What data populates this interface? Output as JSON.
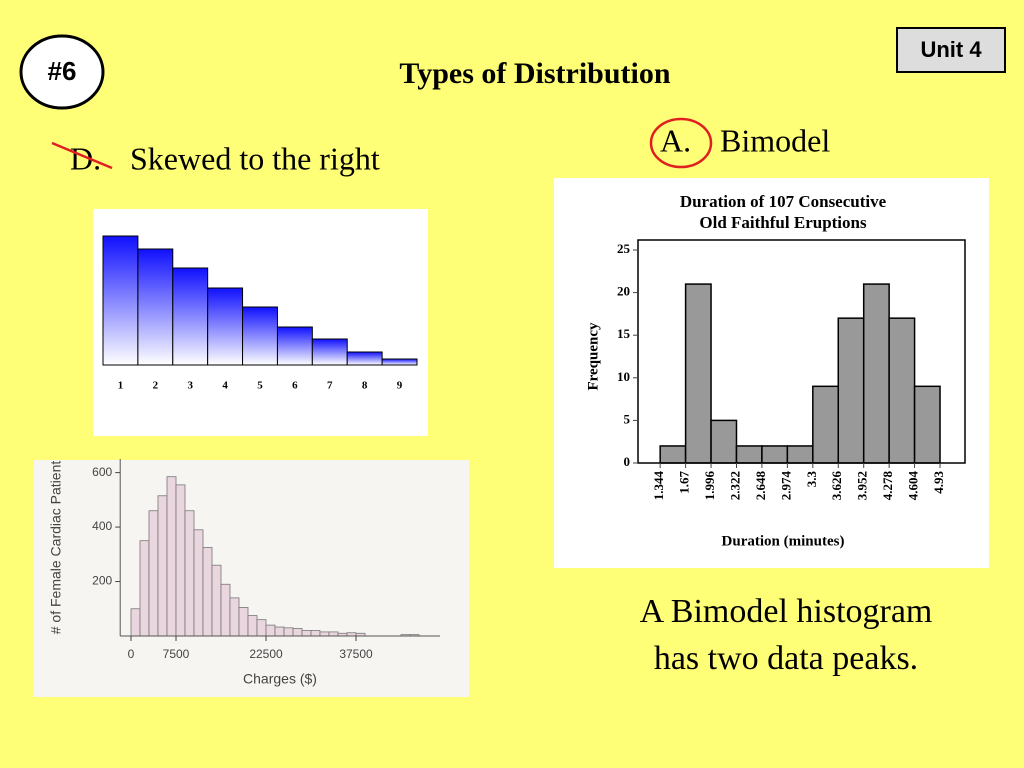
{
  "slide": {
    "badge": "#6",
    "unit": "Unit 4",
    "title": "Types of Distribution",
    "left_heading": {
      "letter": "D.",
      "text": "Skewed to the right"
    },
    "right_heading": {
      "letter": "A.",
      "text": "Bimodel"
    },
    "caption": [
      "A Bimodel histogram",
      "has two data peaks."
    ]
  },
  "chart_data": [
    {
      "type": "bar",
      "categories": [
        "1",
        "2",
        "3",
        "4",
        "5",
        "6",
        "7",
        "8",
        "9"
      ],
      "values": [
        129,
        116,
        97,
        77,
        58,
        38,
        26,
        13,
        6
      ],
      "color": "#1010ff"
    },
    {
      "type": "histogram",
      "xlabel": "Charges ($)",
      "ylabel": "# of Female Cardiac Patient",
      "bins": [
        0,
        1500,
        3000,
        4500,
        6000,
        7500,
        9000,
        10500,
        12000,
        13500,
        15000,
        16500,
        18000,
        19500,
        21000,
        22500,
        24000,
        25500,
        27000,
        28500,
        30000,
        31500,
        33000,
        34500,
        36000,
        37500,
        39000,
        40500,
        42000,
        43500,
        45000,
        46500,
        48000
      ],
      "values": [
        100,
        350,
        460,
        515,
        585,
        555,
        460,
        390,
        325,
        260,
        190,
        140,
        105,
        75,
        60,
        40,
        33,
        30,
        28,
        20,
        20,
        15,
        15,
        10,
        12,
        10,
        0,
        0,
        0,
        0,
        5,
        5
      ],
      "color": "#ead6de",
      "xlim": [
        -1800,
        51500
      ],
      "xticks": [
        0,
        7500,
        22500,
        37500
      ],
      "ylim": [
        0,
        650
      ],
      "yticks": [
        200,
        400,
        600
      ]
    },
    {
      "type": "histogram",
      "title": [
        "Duration of 107 Consecutive",
        "Old Faithful Eruptions"
      ],
      "xlabel": "Duration (minutes)",
      "ylabel": "Frequency",
      "bins": [
        1.344,
        1.67,
        1.996,
        2.322,
        2.648,
        2.974,
        3.3,
        3.626,
        3.952,
        4.278,
        4.604,
        4.93
      ],
      "values": [
        2,
        21,
        5,
        2,
        2,
        2,
        9,
        17,
        21,
        17,
        9
      ],
      "color": "#999999",
      "xlim": [
        1.06,
        5.25
      ],
      "xticks": [
        1.344,
        1.67,
        1.996,
        2.322,
        2.648,
        2.974,
        3.3,
        3.626,
        3.952,
        4.278,
        4.604,
        4.93
      ],
      "ylim": [
        0,
        25
      ],
      "yticks": [
        0,
        5,
        10,
        15,
        20,
        25
      ]
    }
  ]
}
